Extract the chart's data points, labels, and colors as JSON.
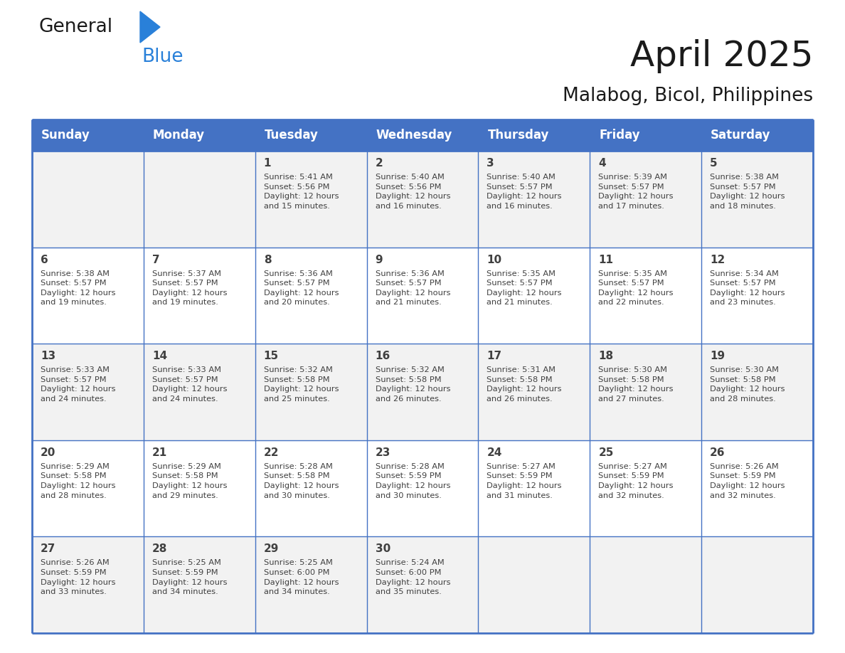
{
  "title": "April 2025",
  "subtitle": "Malabog, Bicol, Philippines",
  "header_color": "#4472C4",
  "header_text_color": "#FFFFFF",
  "days_of_week": [
    "Sunday",
    "Monday",
    "Tuesday",
    "Wednesday",
    "Thursday",
    "Friday",
    "Saturday"
  ],
  "background_alt": "#F2F2F2",
  "background_white": "#FFFFFF",
  "text_color": "#404040",
  "line_color": "#4472C4",
  "logo_black": "#1a1a1a",
  "logo_blue": "#2980D9",
  "title_color": "#1a1a1a",
  "calendar": [
    [
      {
        "day": "",
        "info": ""
      },
      {
        "day": "",
        "info": ""
      },
      {
        "day": "1",
        "info": "Sunrise: 5:41 AM\nSunset: 5:56 PM\nDaylight: 12 hours\nand 15 minutes."
      },
      {
        "day": "2",
        "info": "Sunrise: 5:40 AM\nSunset: 5:56 PM\nDaylight: 12 hours\nand 16 minutes."
      },
      {
        "day": "3",
        "info": "Sunrise: 5:40 AM\nSunset: 5:57 PM\nDaylight: 12 hours\nand 16 minutes."
      },
      {
        "day": "4",
        "info": "Sunrise: 5:39 AM\nSunset: 5:57 PM\nDaylight: 12 hours\nand 17 minutes."
      },
      {
        "day": "5",
        "info": "Sunrise: 5:38 AM\nSunset: 5:57 PM\nDaylight: 12 hours\nand 18 minutes."
      }
    ],
    [
      {
        "day": "6",
        "info": "Sunrise: 5:38 AM\nSunset: 5:57 PM\nDaylight: 12 hours\nand 19 minutes."
      },
      {
        "day": "7",
        "info": "Sunrise: 5:37 AM\nSunset: 5:57 PM\nDaylight: 12 hours\nand 19 minutes."
      },
      {
        "day": "8",
        "info": "Sunrise: 5:36 AM\nSunset: 5:57 PM\nDaylight: 12 hours\nand 20 minutes."
      },
      {
        "day": "9",
        "info": "Sunrise: 5:36 AM\nSunset: 5:57 PM\nDaylight: 12 hours\nand 21 minutes."
      },
      {
        "day": "10",
        "info": "Sunrise: 5:35 AM\nSunset: 5:57 PM\nDaylight: 12 hours\nand 21 minutes."
      },
      {
        "day": "11",
        "info": "Sunrise: 5:35 AM\nSunset: 5:57 PM\nDaylight: 12 hours\nand 22 minutes."
      },
      {
        "day": "12",
        "info": "Sunrise: 5:34 AM\nSunset: 5:57 PM\nDaylight: 12 hours\nand 23 minutes."
      }
    ],
    [
      {
        "day": "13",
        "info": "Sunrise: 5:33 AM\nSunset: 5:57 PM\nDaylight: 12 hours\nand 24 minutes."
      },
      {
        "day": "14",
        "info": "Sunrise: 5:33 AM\nSunset: 5:57 PM\nDaylight: 12 hours\nand 24 minutes."
      },
      {
        "day": "15",
        "info": "Sunrise: 5:32 AM\nSunset: 5:58 PM\nDaylight: 12 hours\nand 25 minutes."
      },
      {
        "day": "16",
        "info": "Sunrise: 5:32 AM\nSunset: 5:58 PM\nDaylight: 12 hours\nand 26 minutes."
      },
      {
        "day": "17",
        "info": "Sunrise: 5:31 AM\nSunset: 5:58 PM\nDaylight: 12 hours\nand 26 minutes."
      },
      {
        "day": "18",
        "info": "Sunrise: 5:30 AM\nSunset: 5:58 PM\nDaylight: 12 hours\nand 27 minutes."
      },
      {
        "day": "19",
        "info": "Sunrise: 5:30 AM\nSunset: 5:58 PM\nDaylight: 12 hours\nand 28 minutes."
      }
    ],
    [
      {
        "day": "20",
        "info": "Sunrise: 5:29 AM\nSunset: 5:58 PM\nDaylight: 12 hours\nand 28 minutes."
      },
      {
        "day": "21",
        "info": "Sunrise: 5:29 AM\nSunset: 5:58 PM\nDaylight: 12 hours\nand 29 minutes."
      },
      {
        "day": "22",
        "info": "Sunrise: 5:28 AM\nSunset: 5:58 PM\nDaylight: 12 hours\nand 30 minutes."
      },
      {
        "day": "23",
        "info": "Sunrise: 5:28 AM\nSunset: 5:59 PM\nDaylight: 12 hours\nand 30 minutes."
      },
      {
        "day": "24",
        "info": "Sunrise: 5:27 AM\nSunset: 5:59 PM\nDaylight: 12 hours\nand 31 minutes."
      },
      {
        "day": "25",
        "info": "Sunrise: 5:27 AM\nSunset: 5:59 PM\nDaylight: 12 hours\nand 32 minutes."
      },
      {
        "day": "26",
        "info": "Sunrise: 5:26 AM\nSunset: 5:59 PM\nDaylight: 12 hours\nand 32 minutes."
      }
    ],
    [
      {
        "day": "27",
        "info": "Sunrise: 5:26 AM\nSunset: 5:59 PM\nDaylight: 12 hours\nand 33 minutes."
      },
      {
        "day": "28",
        "info": "Sunrise: 5:25 AM\nSunset: 5:59 PM\nDaylight: 12 hours\nand 34 minutes."
      },
      {
        "day": "29",
        "info": "Sunrise: 5:25 AM\nSunset: 6:00 PM\nDaylight: 12 hours\nand 34 minutes."
      },
      {
        "day": "30",
        "info": "Sunrise: 5:24 AM\nSunset: 6:00 PM\nDaylight: 12 hours\nand 35 minutes."
      },
      {
        "day": "",
        "info": ""
      },
      {
        "day": "",
        "info": ""
      },
      {
        "day": "",
        "info": ""
      }
    ]
  ]
}
